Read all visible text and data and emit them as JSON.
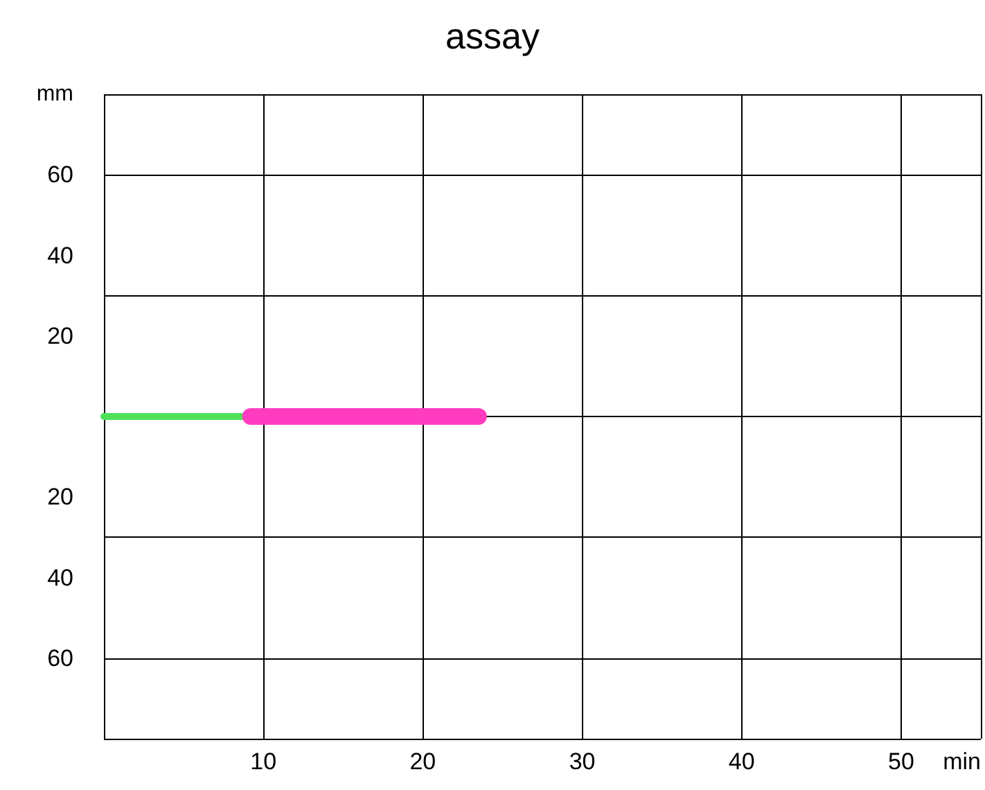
{
  "chart_data": {
    "type": "line",
    "title": "assay",
    "xlabel": "min",
    "ylabel": "mm",
    "series": [
      {
        "color": "#4fe05a",
        "x": [
          0,
          9.1
        ],
        "values": [
          0,
          0
        ]
      },
      {
        "color": "#ff3cc0",
        "x": [
          9.2,
          23.5
        ],
        "values": [
          0,
          0
        ]
      }
    ],
    "xlim": [
      0,
      55
    ],
    "xticks": [
      {
        "value": 0,
        "label": null
      },
      10,
      20,
      30,
      40,
      50
    ],
    "ylim": [
      -80,
      80
    ],
    "yticks": [
      {
        "value": -80,
        "label": null
      },
      {
        "value": -60,
        "label": "60"
      },
      {
        "value": -40,
        "label": "40"
      },
      {
        "value": -20,
        "label": "20"
      },
      {
        "value": 0,
        "label": null
      },
      20,
      40,
      60
    ],
    "grid": true,
    "marker": "none",
    "line_style": "solid"
  }
}
